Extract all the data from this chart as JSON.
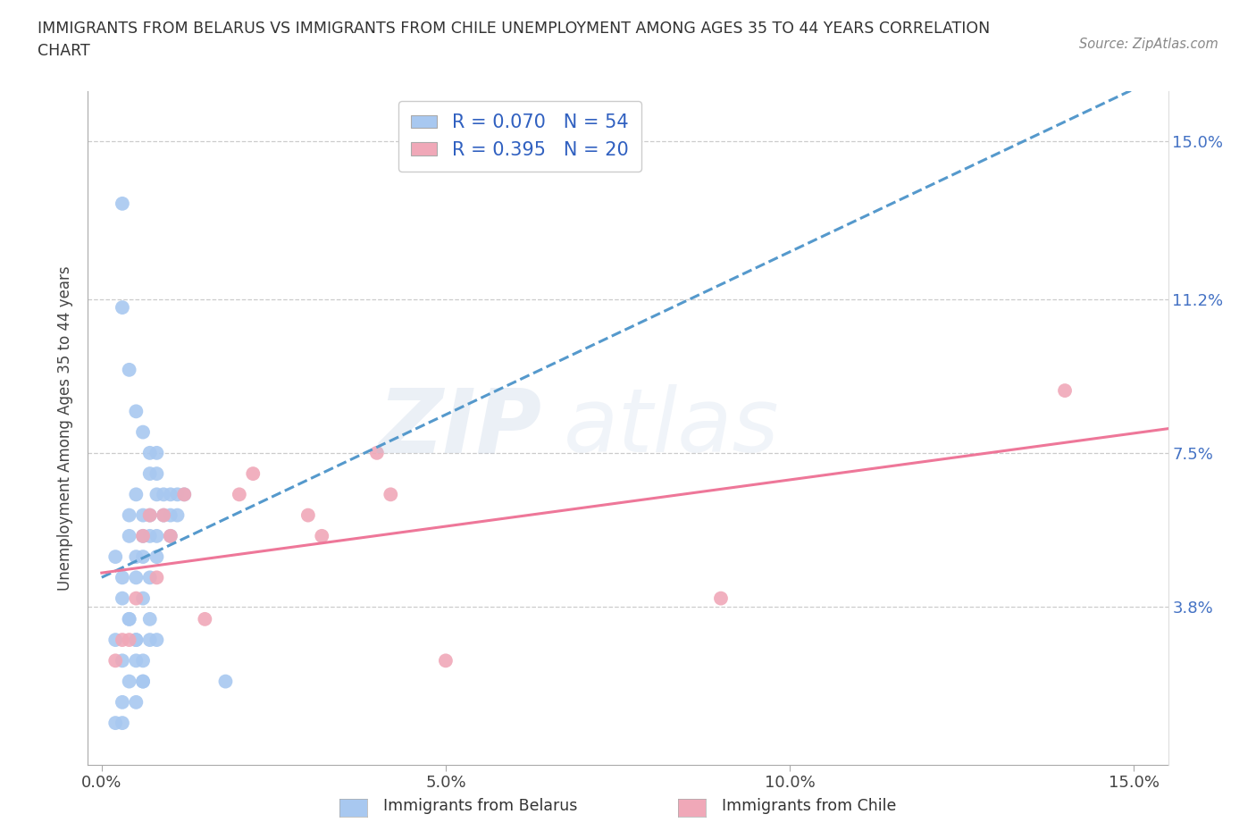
{
  "title": "IMMIGRANTS FROM BELARUS VS IMMIGRANTS FROM CHILE UNEMPLOYMENT AMONG AGES 35 TO 44 YEARS CORRELATION\nCHART",
  "source": "Source: ZipAtlas.com",
  "xlabel_belarus": "Immigrants from Belarus",
  "xlabel_chile": "Immigrants from Chile",
  "ylabel": "Unemployment Among Ages 35 to 44 years",
  "xlim": [
    0.0,
    0.15
  ],
  "ylim": [
    0.0,
    0.16
  ],
  "yticks": [
    0.038,
    0.075,
    0.112,
    0.15
  ],
  "ytick_labels": [
    "3.8%",
    "7.5%",
    "11.2%",
    "15.0%"
  ],
  "xticks": [
    0.0,
    0.05,
    0.1,
    0.15
  ],
  "xtick_labels": [
    "0.0%",
    "5.0%",
    "10.0%",
    "15.0%"
  ],
  "R_belarus": 0.07,
  "N_belarus": 54,
  "R_chile": 0.395,
  "N_chile": 20,
  "color_belarus": "#a8c8f0",
  "color_chile": "#f0a8b8",
  "line_color_belarus": "#5599cc",
  "line_color_chile": "#ee7799",
  "legend_text_color": "#3060c0",
  "belarus_x": [
    0.002,
    0.003,
    0.003,
    0.004,
    0.004,
    0.004,
    0.005,
    0.005,
    0.005,
    0.005,
    0.006,
    0.006,
    0.006,
    0.006,
    0.007,
    0.007,
    0.007,
    0.007,
    0.008,
    0.008,
    0.008,
    0.008,
    0.009,
    0.009,
    0.01,
    0.01,
    0.01,
    0.011,
    0.011,
    0.012,
    0.002,
    0.003,
    0.004,
    0.005,
    0.005,
    0.006,
    0.006,
    0.007,
    0.007,
    0.008,
    0.003,
    0.004,
    0.005,
    0.006,
    0.007,
    0.008,
    0.003,
    0.004,
    0.005,
    0.006,
    0.002,
    0.003,
    0.018,
    0.003
  ],
  "belarus_y": [
    0.05,
    0.045,
    0.04,
    0.06,
    0.055,
    0.035,
    0.065,
    0.05,
    0.045,
    0.03,
    0.055,
    0.06,
    0.05,
    0.04,
    0.07,
    0.055,
    0.06,
    0.045,
    0.065,
    0.07,
    0.055,
    0.05,
    0.06,
    0.065,
    0.06,
    0.055,
    0.065,
    0.06,
    0.065,
    0.065,
    0.03,
    0.025,
    0.035,
    0.025,
    0.03,
    0.02,
    0.025,
    0.03,
    0.035,
    0.03,
    0.11,
    0.095,
    0.085,
    0.08,
    0.075,
    0.075,
    0.015,
    0.02,
    0.015,
    0.02,
    0.01,
    0.01,
    0.02,
    0.135
  ],
  "chile_x": [
    0.002,
    0.003,
    0.004,
    0.005,
    0.006,
    0.007,
    0.008,
    0.009,
    0.01,
    0.012,
    0.015,
    0.02,
    0.022,
    0.03,
    0.032,
    0.04,
    0.042,
    0.05,
    0.09,
    0.14
  ],
  "chile_y": [
    0.025,
    0.03,
    0.03,
    0.04,
    0.055,
    0.06,
    0.045,
    0.06,
    0.055,
    0.065,
    0.035,
    0.065,
    0.07,
    0.06,
    0.055,
    0.075,
    0.065,
    0.025,
    0.04,
    0.09
  ]
}
